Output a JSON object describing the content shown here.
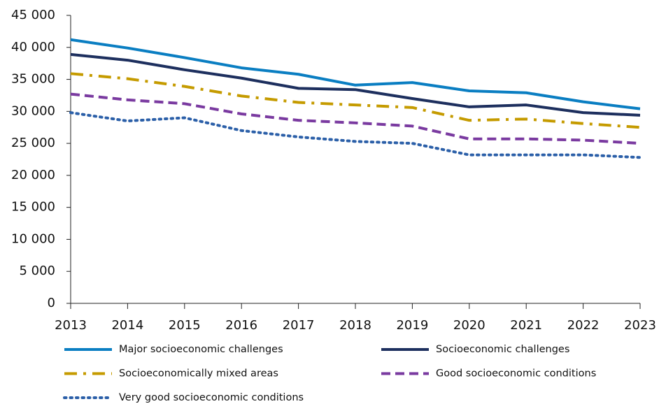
{
  "chart_data": {
    "type": "line",
    "categories": [
      "2013",
      "2014",
      "2015",
      "2016",
      "2017",
      "2018",
      "2019",
      "2020",
      "2021",
      "2022",
      "2023"
    ],
    "ylim": [
      0,
      45000
    ],
    "yticks": [
      0,
      {
        "value": 5000,
        "label": "5 000"
      },
      {
        "value": 10000,
        "label": "10 000"
      },
      {
        "value": 15000,
        "label": "15 000"
      },
      {
        "value": 20000,
        "label": "20 000"
      },
      {
        "value": 25000,
        "label": "25 000"
      },
      {
        "value": 30000,
        "label": "30 000"
      },
      {
        "value": 35000,
        "label": "35 000"
      },
      {
        "value": 40000,
        "label": "40 000"
      },
      {
        "value": 45000,
        "label": "45 000"
      }
    ],
    "grid": false,
    "series": [
      {
        "name": "Major socioeconomic challenges",
        "color": "#0a7ec2",
        "style": "solid",
        "values": [
          41200,
          39900,
          38400,
          36800,
          35800,
          34100,
          34500,
          33200,
          32900,
          31500,
          30400
        ]
      },
      {
        "name": "Socioeconomic challenges",
        "color": "#1d2f5e",
        "style": "solid",
        "values": [
          38900,
          38000,
          36500,
          35200,
          33600,
          33400,
          32000,
          30700,
          31000,
          29800,
          29400
        ]
      },
      {
        "name": "Socioeconomically mixed areas",
        "color": "#c59b00",
        "style": "dashdot",
        "values": [
          35900,
          35100,
          33900,
          32400,
          31400,
          31000,
          30600,
          28600,
          28800,
          28100,
          27500
        ]
      },
      {
        "name": "Good socioeconomic conditions",
        "color": "#7a3aa0",
        "style": "dashed",
        "values": [
          32700,
          31800,
          31200,
          29600,
          28600,
          28200,
          27700,
          25700,
          25700,
          25500,
          25000
        ]
      },
      {
        "name": "Very good socioeconomic conditions",
        "color": "#2b5fa8",
        "style": "dotted",
        "values": [
          29800,
          28500,
          29000,
          27000,
          26000,
          25300,
          25000,
          23200,
          23200,
          23200,
          22800
        ]
      }
    ]
  }
}
